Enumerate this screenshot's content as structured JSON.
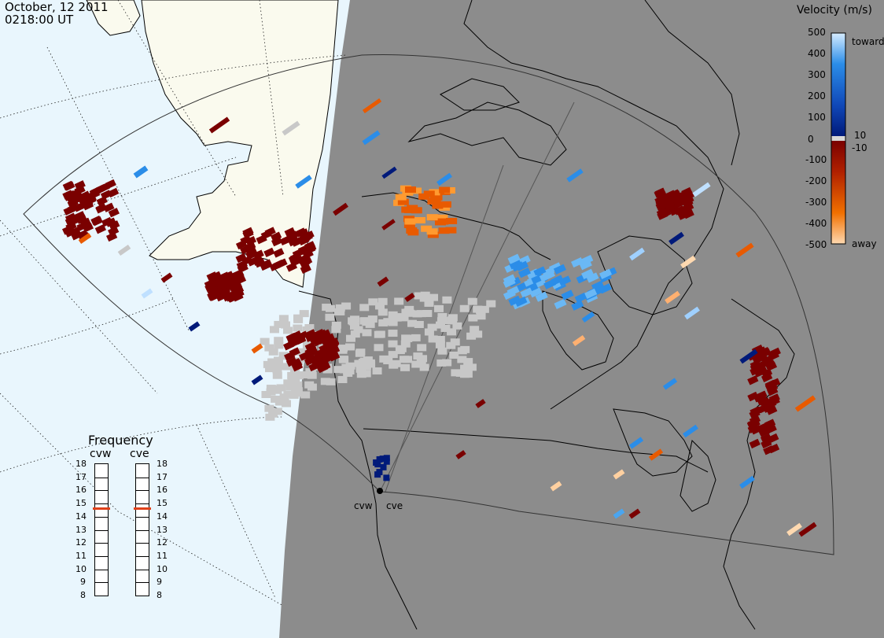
{
  "header": {
    "date": "October, 12 2011",
    "time": "0218:00 UT"
  },
  "colorbar": {
    "title": "Velocity (m/s)",
    "ticks": [
      "500",
      "400",
      "300",
      "200",
      "100",
      "0",
      "-100",
      "-200",
      "-300",
      "-400",
      "-500"
    ],
    "near_zero_labels": [
      "10",
      "-10"
    ],
    "toward_label": "toward",
    "away_label": "away",
    "colors": {
      "toward_high": "#cfe9ff",
      "toward_mid": "#2b8de8",
      "toward_low": "#001a7a",
      "zero": "#d8d8d8",
      "away_low": "#7a0000",
      "away_mid": "#e85a00",
      "away_high": "#ffd9b0"
    }
  },
  "frequency": {
    "title": "Frequency",
    "radars": [
      {
        "name": "cvw",
        "value": 15
      },
      {
        "name": "cve",
        "value": 15
      }
    ],
    "scale": [
      "18",
      "17",
      "16",
      "15",
      "14",
      "13",
      "12",
      "11",
      "10",
      "9",
      "8"
    ]
  },
  "sites": [
    {
      "name": "cvw"
    },
    {
      "name": "cve"
    }
  ],
  "map_colors": {
    "night": "#8c8c8c",
    "ocean_day": "#e9f6fd",
    "land_day": "#fafaee",
    "ground_scatter": "#c8c8c8"
  }
}
